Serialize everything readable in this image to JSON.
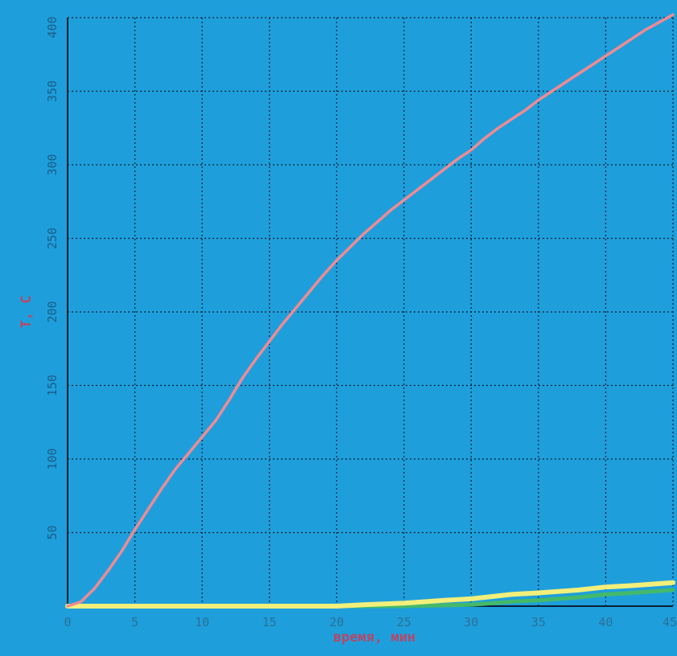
{
  "chart_data": {
    "type": "line",
    "title": "",
    "xlabel": "время, мин",
    "ylabel": "T, C",
    "xlim": [
      0,
      45
    ],
    "ylim": [
      0,
      400
    ],
    "grid": true,
    "x_ticks": [
      "0",
      "5",
      "10",
      "15",
      "20",
      "25",
      "30",
      "35",
      "40",
      "45"
    ],
    "y_ticks": [
      "50",
      "100",
      "150",
      "200",
      "250",
      "300",
      "350",
      "400"
    ],
    "series": [
      {
        "color": "#f08a92",
        "x": [
          0,
          1,
          2,
          3,
          4,
          5,
          6,
          7,
          8,
          9,
          10,
          11,
          12,
          13,
          14,
          15,
          16,
          17,
          18,
          19,
          20,
          21,
          22,
          23,
          24,
          25,
          26,
          27,
          28,
          29,
          30,
          31,
          32,
          33,
          34,
          35,
          36,
          37,
          38,
          39,
          40,
          41,
          42,
          43,
          44,
          45
        ],
        "y": [
          0,
          3,
          12,
          24,
          37,
          52,
          66,
          80,
          93,
          104,
          115,
          126,
          140,
          155,
          168,
          180,
          192,
          203,
          214,
          225,
          235,
          244,
          253,
          261,
          269,
          276,
          283,
          290,
          297,
          304,
          310,
          318,
          325,
          331,
          337,
          344,
          350,
          356,
          362,
          368,
          374,
          380,
          386,
          392,
          397,
          402
        ]
      },
      {
        "color": "#f2ef7a",
        "x": [
          0,
          5,
          10,
          15,
          20,
          22,
          25,
          28,
          30,
          33,
          35,
          38,
          40,
          42,
          45
        ],
        "y": [
          0,
          0,
          0,
          0,
          0,
          1,
          2,
          4,
          5,
          8,
          9,
          11,
          13,
          14,
          16
        ]
      },
      {
        "color": "#44b96a",
        "x": [
          0,
          5,
          10,
          15,
          20,
          25,
          30,
          33,
          35,
          38,
          40,
          42,
          45
        ],
        "y": [
          0,
          0,
          0,
          0,
          0,
          0,
          1,
          3,
          4,
          6,
          8,
          9,
          11
        ]
      }
    ]
  },
  "colors": {
    "plot_background": "#1e9fdc",
    "grid_lines": "#0b1f33",
    "page_background": "#1e9fdc"
  }
}
